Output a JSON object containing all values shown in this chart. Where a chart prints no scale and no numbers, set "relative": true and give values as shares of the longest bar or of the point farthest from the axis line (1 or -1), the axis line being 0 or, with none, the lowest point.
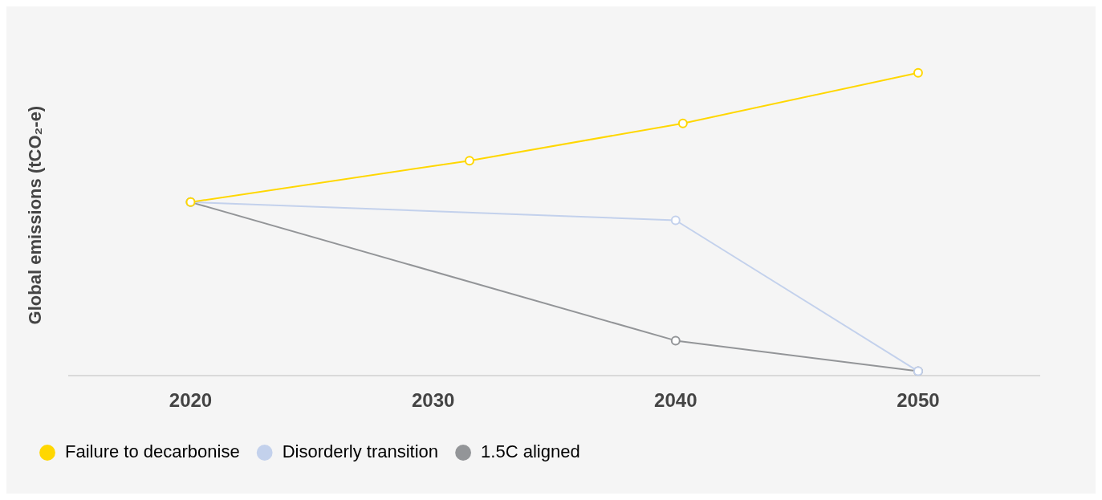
{
  "chart_data": {
    "type": "line",
    "ylabel": "Global emissions (tCO₂-e)",
    "relative": true,
    "xlim": [
      2015,
      2055
    ],
    "xticks": [
      2020,
      2030,
      2040,
      2050
    ],
    "grid": false,
    "legend": "bottom left",
    "marker": "circle",
    "line_style": "solid",
    "series": [
      {
        "name": "Failure to decarbonise",
        "color": "#ffd700",
        "x": [
          2020,
          2031.5,
          2040.3,
          2050
        ],
        "values": [
          0.573,
          0.71,
          0.833,
          1
        ]
      },
      {
        "name": "Disorderly transition",
        "color": "#c3d1ec",
        "x": [
          2020,
          2040,
          2050
        ],
        "values": [
          0.573,
          0.513,
          0.015
        ]
      },
      {
        "name": "1.5C aligned",
        "color": "#939598",
        "x": [
          2020,
          2040,
          2050
        ],
        "values": [
          0.573,
          0.116,
          0.015
        ]
      }
    ]
  }
}
